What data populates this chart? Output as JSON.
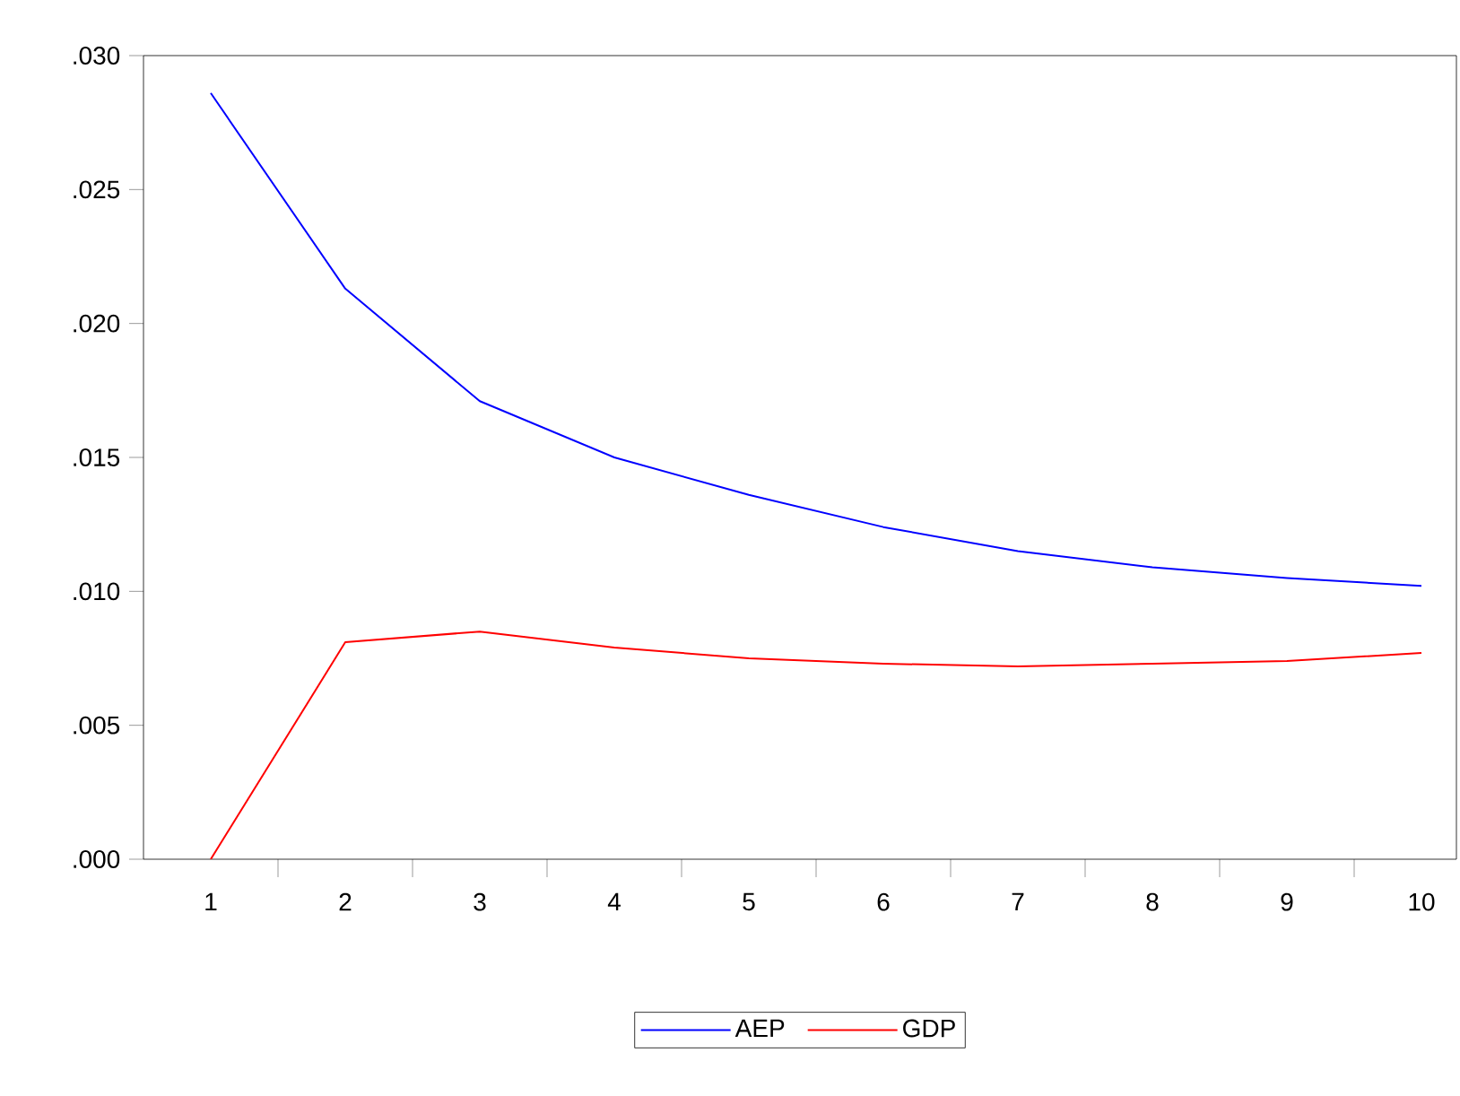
{
  "chart_data": {
    "type": "line",
    "categories": [
      "1",
      "2",
      "3",
      "4",
      "5",
      "6",
      "7",
      "8",
      "9",
      "10"
    ],
    "series": [
      {
        "name": "AEP",
        "color": "#0000ff",
        "values": [
          0.0286,
          0.0213,
          0.0171,
          0.015,
          0.0136,
          0.0124,
          0.0115,
          0.0109,
          0.0105,
          0.0102
        ]
      },
      {
        "name": "GDP",
        "color": "#ff0000",
        "values": [
          0.0,
          0.0081,
          0.0085,
          0.0079,
          0.0075,
          0.0073,
          0.0072,
          0.0073,
          0.0074,
          0.0077
        ]
      }
    ],
    "ylim": [
      0,
      0.03
    ],
    "yticks": [
      {
        "value": 0,
        "label": ".000"
      },
      {
        "value": 0.005,
        "label": ".005"
      },
      {
        "value": 0.01,
        "label": ".010"
      },
      {
        "value": 0.015,
        "label": ".015"
      },
      {
        "value": 0.02,
        "label": ".020"
      },
      {
        "value": 0.025,
        "label": ".025"
      },
      {
        "value": 0.03,
        "label": ".030"
      }
    ],
    "legend": "bottom",
    "grid": false,
    "marker": "none",
    "line_style": "solid"
  }
}
